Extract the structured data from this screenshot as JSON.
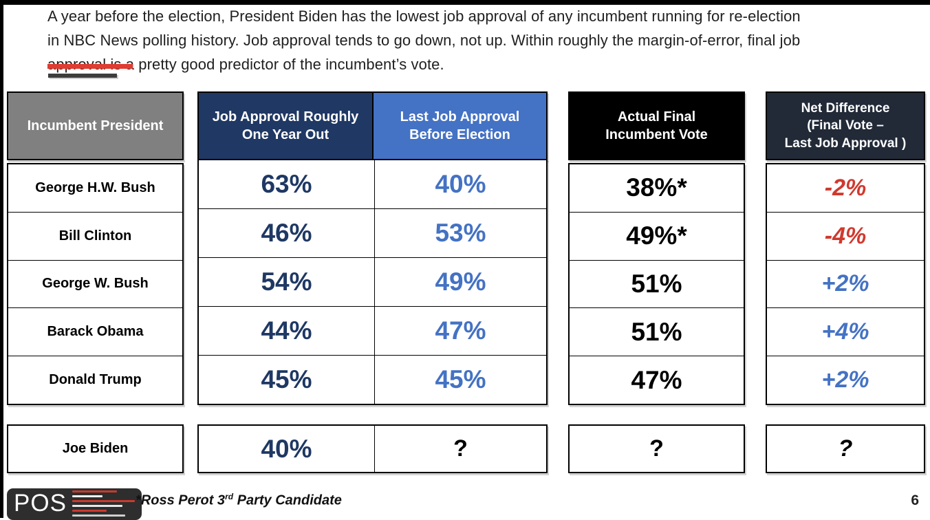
{
  "intro": {
    "lines": [
      "A year before the election, President Biden has the lowest job approval of any incumbent running for re-election",
      "in NBC News polling history. Job approval tends to go down, not up. Within roughly the margin-of-error, final job",
      "approval is a pretty good predictor of the incumbent’s vote."
    ]
  },
  "table": {
    "columns": [
      {
        "label": "Incumbent President"
      },
      {
        "lines": [
          "Job Approval Roughly",
          "One Year Out"
        ]
      },
      {
        "lines": [
          "Last Job Approval",
          "Before Election"
        ]
      },
      {
        "lines": [
          "Actual Final",
          "Incumbent Vote"
        ]
      },
      {
        "lines": [
          "Net Difference",
          "(Final Vote –",
          "Last Job Approval )"
        ]
      }
    ],
    "rows": [
      {
        "president": "George H.W. Bush",
        "approval_year_out": "63%",
        "last_approval": "40%",
        "final_vote": "38%*",
        "net_difference": "-2%",
        "net_class": "red"
      },
      {
        "president": "Bill Clinton",
        "approval_year_out": "46%",
        "last_approval": "53%",
        "final_vote": "49%*",
        "net_difference": "-4%",
        "net_class": "red"
      },
      {
        "president": "George W. Bush",
        "approval_year_out": "54%",
        "last_approval": "49%",
        "final_vote": "51%",
        "net_difference": "+2%",
        "net_class": "blue"
      },
      {
        "president": "Barack Obama",
        "approval_year_out": "44%",
        "last_approval": "47%",
        "final_vote": "51%",
        "net_difference": "+4%",
        "net_class": "blue"
      },
      {
        "president": "Donald Trump",
        "approval_year_out": "45%",
        "last_approval": "45%",
        "final_vote": "47%",
        "net_difference": "+2%",
        "net_class": "blue"
      }
    ],
    "biden_row": {
      "president": "Joe Biden",
      "approval_year_out": "40%",
      "last_approval": "?",
      "final_vote": "?",
      "net_difference": "?"
    }
  },
  "footer": {
    "logo_text": "POS",
    "footnote": {
      "pre": "*Ross Perot 3",
      "sup": "rd",
      "post": " Party Candidate"
    },
    "page_number": "6"
  },
  "colors": {
    "header_gray": "#808080",
    "navy": "#1F3864",
    "blue": "#4472C4",
    "header_black": "#000000",
    "net_header_bg": "#222A38",
    "negative_red": "#D0392E",
    "accent_red_underline": "#E03C31"
  }
}
